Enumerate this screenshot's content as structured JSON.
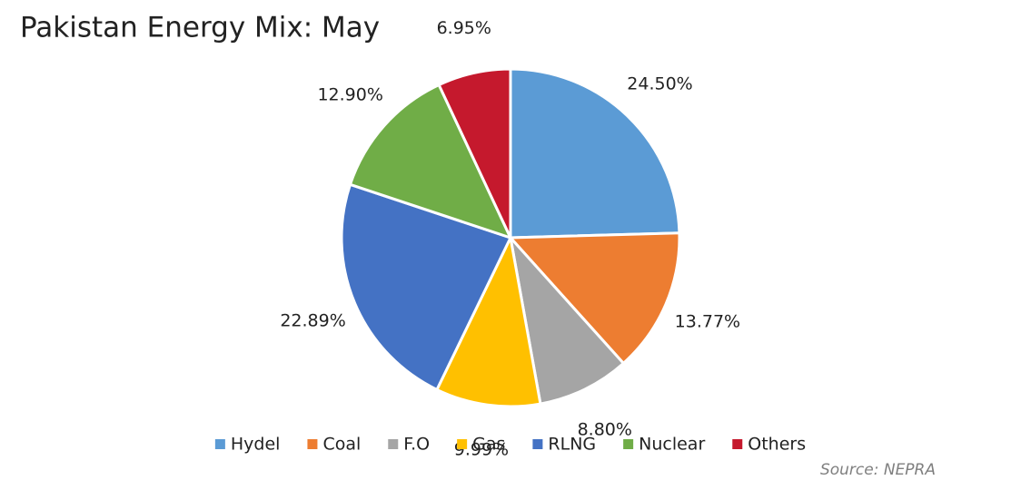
{
  "chart_data": {
    "type": "pie",
    "title": "Pakistan Energy Mix: May",
    "categories": [
      "Hydel",
      "Coal",
      "F.O",
      "Gas",
      "RLNG",
      "Nuclear",
      "Others"
    ],
    "values": [
      24.5,
      13.77,
      8.8,
      9.99,
      22.89,
      12.9,
      6.95
    ],
    "value_labels": [
      "24.50%",
      "13.77%",
      "8.80%",
      "9.99%",
      "22.89%",
      "12.90%",
      "6.95%"
    ],
    "colors": [
      "#5b9bd5",
      "#ed7d31",
      "#a5a5a5",
      "#ffc000",
      "#4472c4",
      "#70ad47",
      "#c5192d"
    ],
    "legend": "bottom",
    "source": "Source: NEPRA"
  }
}
